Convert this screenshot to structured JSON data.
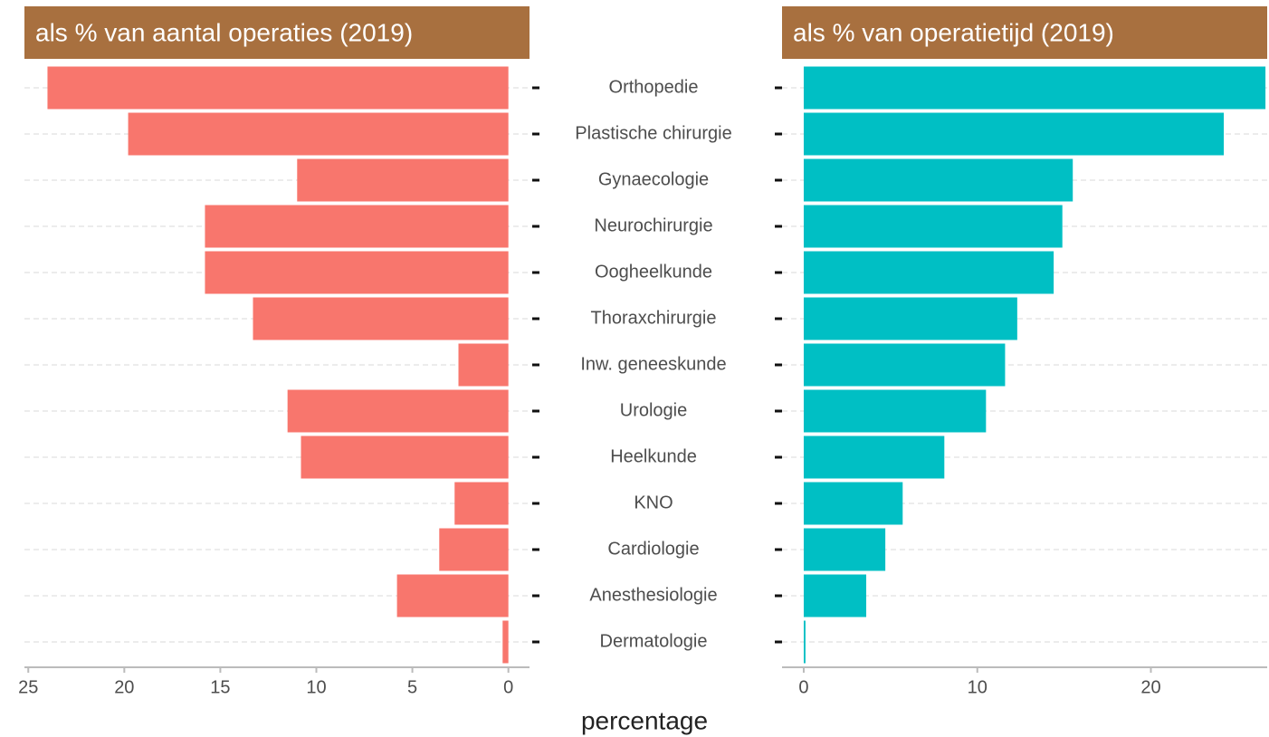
{
  "chart_data": [
    {
      "type": "bar",
      "title": "als % van aantal operaties (2019)",
      "xlabel": "percentage",
      "categories": [
        "Orthopedie",
        "Plastische chirurgie",
        "Gynaecologie",
        "Neurochirurgie",
        "Oogheelkunde",
        "Thoraxchirurgie",
        "Inw. geneeskunde",
        "Urologie",
        "Heelkunde",
        "KNO",
        "Cardiologie",
        "Anesthesiologie",
        "Dermatologie"
      ],
      "values": [
        24.0,
        19.8,
        11.0,
        15.8,
        15.8,
        13.3,
        2.6,
        11.5,
        10.8,
        2.8,
        3.6,
        5.8,
        0.3
      ],
      "color": "#f8766d",
      "xlim": [
        25.2,
        -1.1
      ],
      "xticks": [
        25,
        20,
        15,
        10,
        5,
        0
      ],
      "grid": true
    },
    {
      "type": "bar",
      "title": "als % van operatietijd (2019)",
      "values": [
        26.6,
        24.2,
        15.5,
        14.9,
        14.4,
        12.3,
        11.6,
        10.5,
        8.1,
        5.7,
        4.7,
        3.6,
        0.1
      ],
      "color": "#00bfc4",
      "xlim": [
        -1.25,
        26.7
      ],
      "xticks": [
        0,
        10,
        20
      ],
      "grid": true
    }
  ]
}
